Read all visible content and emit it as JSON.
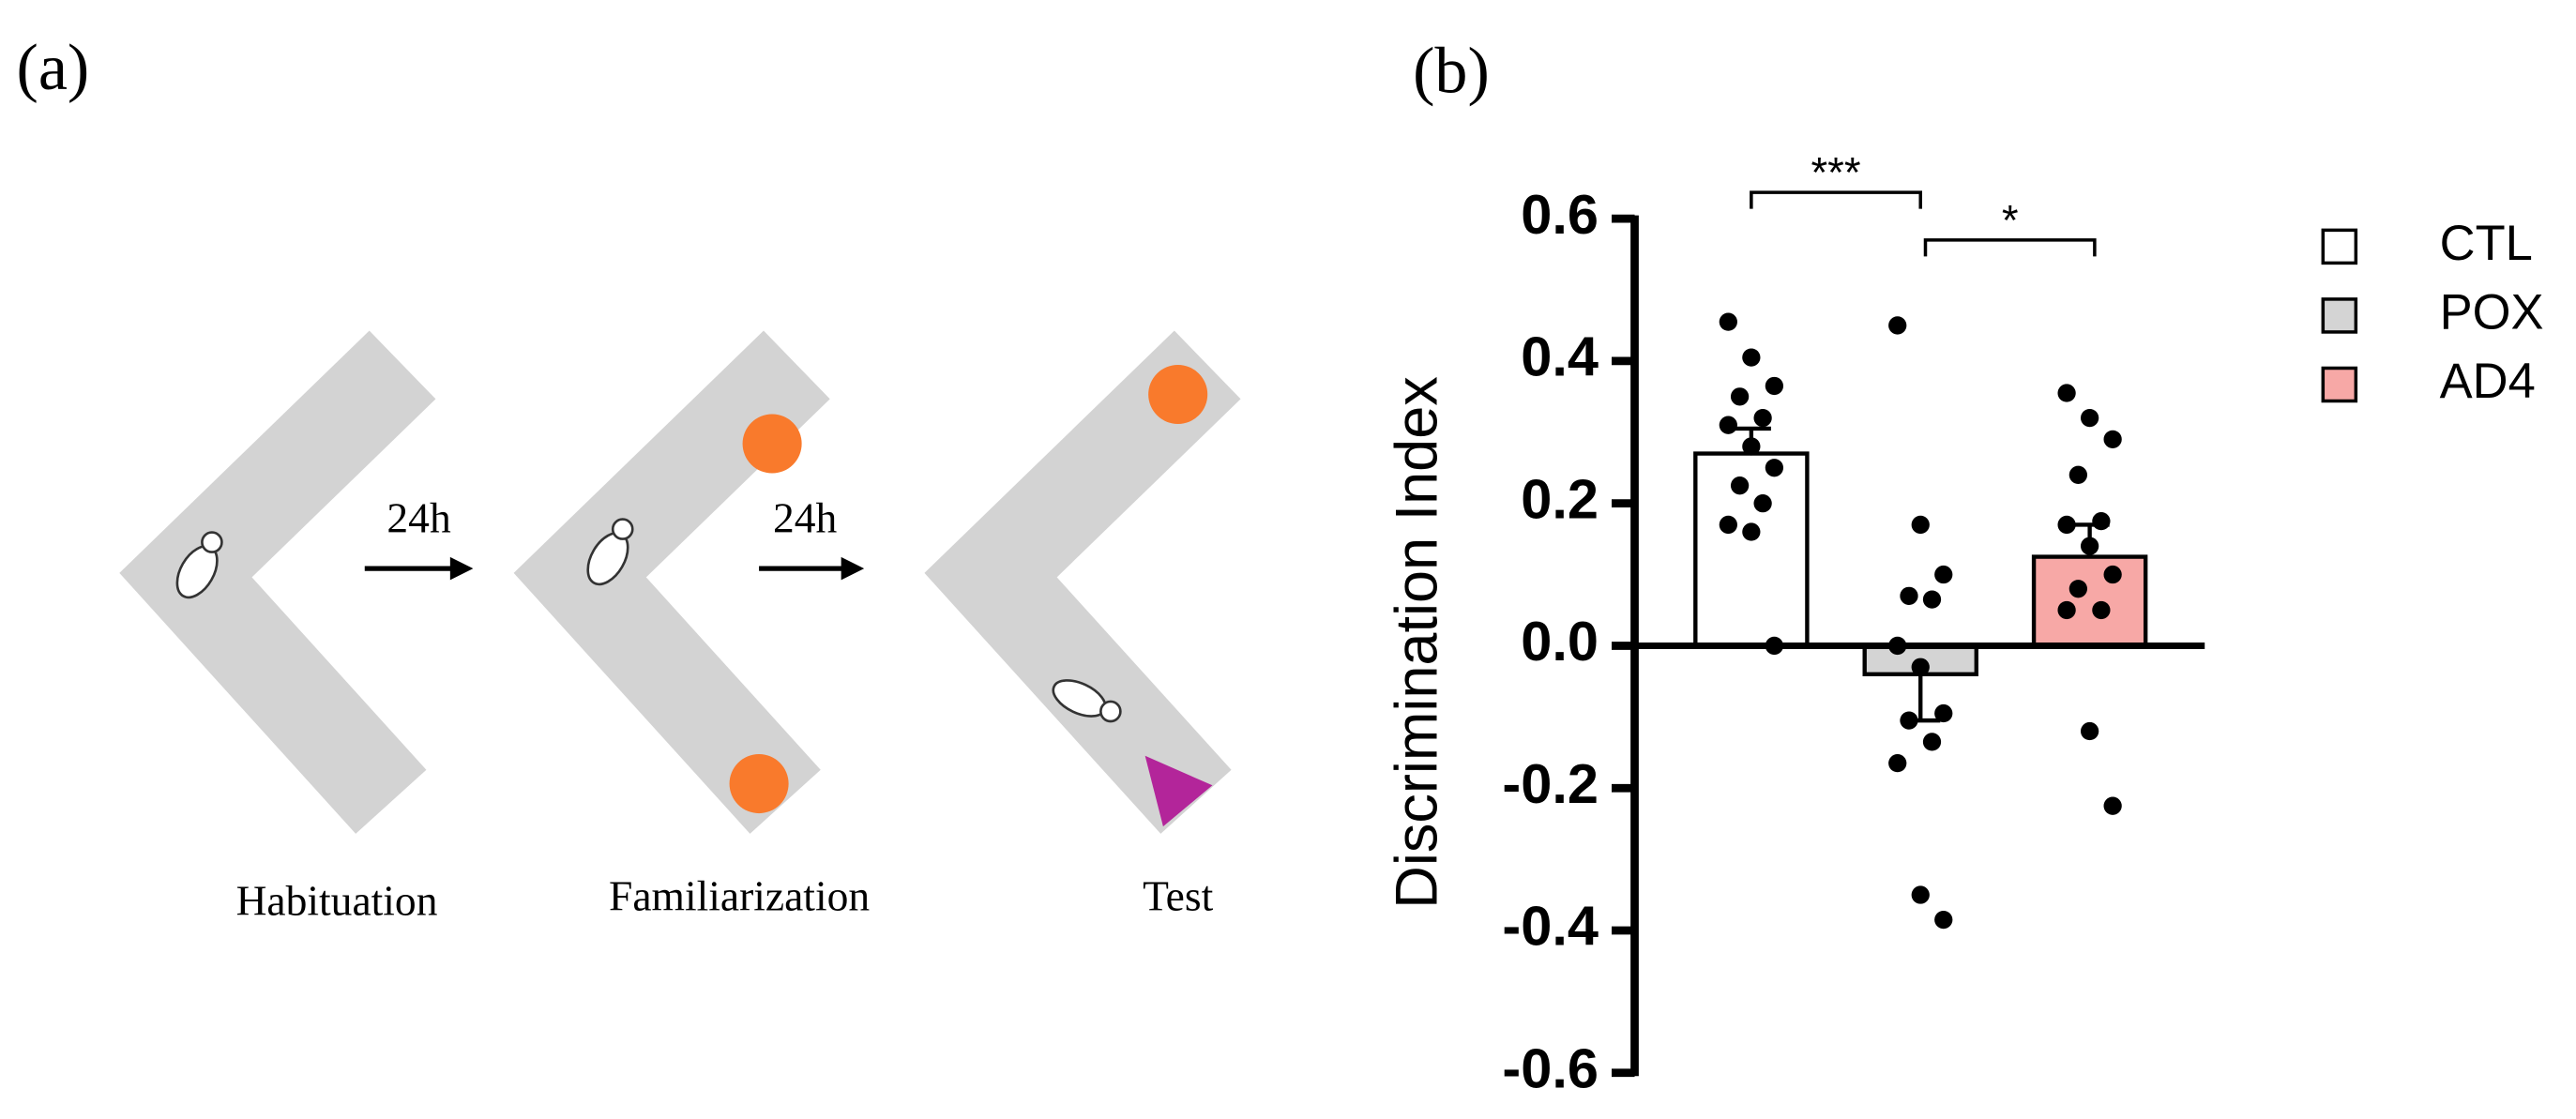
{
  "panel_a": {
    "label": "(a)",
    "arrows": [
      "24h",
      "24h"
    ],
    "stages": [
      "Habituation",
      "Familiarization",
      "Test"
    ]
  },
  "panel_b_label": "(b)",
  "chart_data": {
    "type": "bar",
    "ylabel": "Discrimination Index",
    "ylim": [
      -0.6,
      0.6
    ],
    "yticks": [
      0.6,
      0.4,
      0.2,
      {
        "value": 0,
        "label": "0.0"
      },
      -0.2,
      -0.4,
      -0.6
    ],
    "legend": "right",
    "series": [
      {
        "name": "CTL",
        "color": "#ffffff",
        "mean": 0.27,
        "sem": 0.035,
        "points": [
          0.455,
          0.405,
          0.365,
          0.35,
          0.32,
          0.31,
          0.28,
          0.25,
          0.225,
          0.2,
          0.17,
          0.16,
          0.0
        ]
      },
      {
        "name": "POX",
        "color": "#d4d4d4",
        "mean": -0.04,
        "sem": 0.065,
        "points": [
          0.45,
          0.17,
          0.1,
          0.07,
          0.065,
          0.0,
          -0.03,
          -0.095,
          -0.105,
          -0.135,
          -0.165,
          -0.35,
          -0.385
        ]
      },
      {
        "name": "AD4",
        "color": "#f7a8a6",
        "mean": 0.125,
        "sem": 0.045,
        "points": [
          0.355,
          0.32,
          0.29,
          0.24,
          0.175,
          0.17,
          0.14,
          0.1,
          0.08,
          0.05,
          0.05,
          -0.12,
          -0.225
        ]
      }
    ],
    "comparisons": [
      {
        "text": "***",
        "from": "CTL",
        "to": "POX"
      },
      {
        "text": "*",
        "from": "POX",
        "to": "AD4"
      }
    ]
  }
}
